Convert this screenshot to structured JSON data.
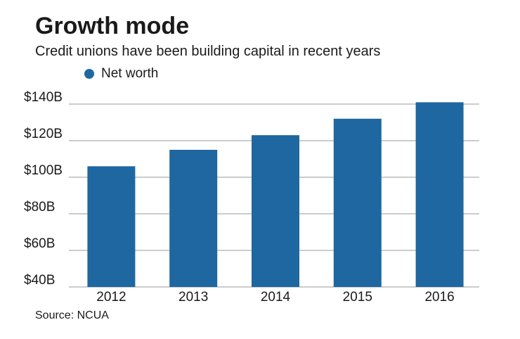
{
  "title": "Growth mode",
  "subtitle": "Credit unions have been building capital in recent years",
  "source": "Source: NCUA",
  "colors": {
    "bar": "#1f67a0",
    "grid": "#9a9a9a"
  },
  "chart_data": {
    "type": "bar",
    "categories": [
      "2012",
      "2013",
      "2014",
      "2015",
      "2016"
    ],
    "series": [
      {
        "name": "Net worth",
        "values": [
          106,
          115,
          123,
          132,
          141
        ]
      }
    ],
    "ylim": [
      40,
      140
    ],
    "yticks": [
      40,
      60,
      80,
      100,
      120,
      140
    ],
    "ytick_labels": [
      "$40B",
      "$60B",
      "$80B",
      "$100B",
      "$120B",
      "$140B"
    ],
    "grid": true,
    "legend": "top-left"
  }
}
